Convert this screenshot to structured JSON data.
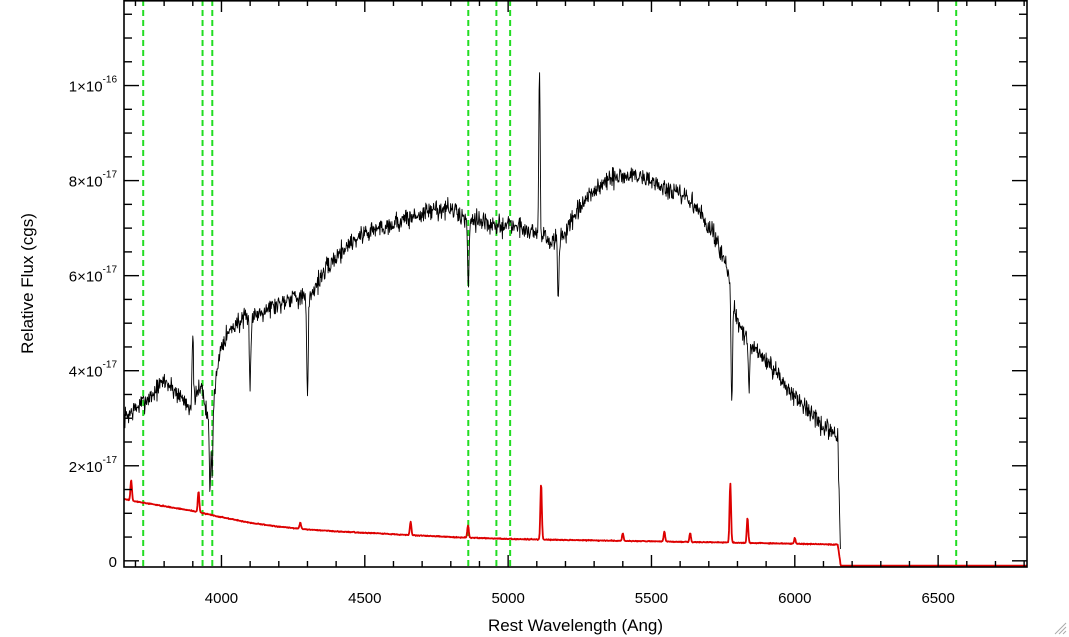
{
  "chart_data": {
    "type": "line",
    "title": "",
    "xlabel": "Rest Wavelength (Ang)",
    "ylabel": "Relative Flux (cgs)",
    "xlim": [
      3660,
      6810
    ],
    "ylim": [
      -1.3e-18,
      1.18e-16
    ],
    "grid": false,
    "legend": "none",
    "x_ticks": [
      {
        "value": 4000,
        "label": "4000"
      },
      {
        "value": 4500,
        "label": "4500"
      },
      {
        "value": 5000,
        "label": "5000"
      },
      {
        "value": 5500,
        "label": "5500"
      },
      {
        "value": 6000,
        "label": "6000"
      },
      {
        "value": 6500,
        "label": "6500"
      }
    ],
    "y_ticks": [
      {
        "value": 0,
        "mantissa": "0",
        "exponent": ""
      },
      {
        "value": 2e-17,
        "mantissa": "2×10",
        "exponent": "-17"
      },
      {
        "value": 4e-17,
        "mantissa": "4×10",
        "exponent": "-17"
      },
      {
        "value": 6e-17,
        "mantissa": "6×10",
        "exponent": "-17"
      },
      {
        "value": 8e-17,
        "mantissa": "8×10",
        "exponent": "-17"
      },
      {
        "value": 1e-16,
        "mantissa": "1×10",
        "exponent": "-16"
      }
    ],
    "reference_lines_x": [
      3727,
      3934,
      3968,
      4861,
      4959,
      5007,
      6563
    ],
    "series": [
      {
        "color": "#000000",
        "seed": 7,
        "noise": 3.2e-18,
        "x": [
          3660,
          3700,
          3760,
          3800,
          3850,
          3900,
          3930,
          3950,
          3975,
          4000,
          4050,
          4100,
          4150,
          4200,
          4250,
          4300,
          4350,
          4400,
          4450,
          4500,
          4550,
          4600,
          4650,
          4700,
          4750,
          4800,
          4850,
          4900,
          4950,
          5000,
          5050,
          5100,
          5150,
          5200,
          5250,
          5300,
          5350,
          5400,
          5450,
          5500,
          5550,
          5600,
          5650,
          5700,
          5750,
          5800,
          5850,
          5900,
          5950,
          6000,
          6050,
          6100,
          6150,
          6160
        ],
        "y": [
          3e-17,
          3.2e-17,
          3.5e-17,
          3.8e-17,
          3.5e-17,
          3.2e-17,
          3.8e-17,
          3e-17,
          3.6e-17,
          4.6e-17,
          5e-17,
          5.1e-17,
          5.3e-17,
          5.4e-17,
          5.6e-17,
          5.5e-17,
          6e-17,
          6.4e-17,
          6.7e-17,
          6.9e-17,
          7e-17,
          7.1e-17,
          7.2e-17,
          7.3e-17,
          7.4e-17,
          7.4e-17,
          7.2e-17,
          7.2e-17,
          7e-17,
          7.1e-17,
          7e-17,
          6.9e-17,
          6.7e-17,
          6.9e-17,
          7.4e-17,
          7.8e-17,
          8e-17,
          8.1e-17,
          8.1e-17,
          8e-17,
          7.8e-17,
          7.7e-17,
          7.5e-17,
          7e-17,
          6.5e-17,
          5e-17,
          4.5e-17,
          4.2e-17,
          3.8e-17,
          3.5e-17,
          3.1e-17,
          2.8e-17,
          2.6e-17,
          0
        ],
        "features": [
          {
            "x": 3900,
            "y": 4.6e-17
          },
          {
            "x": 3934,
            "y": 3.5e-17
          },
          {
            "x": 3960,
            "y": 1.5e-17
          },
          {
            "x": 3968,
            "y": 1.8e-17
          },
          {
            "x": 4100,
            "y": 3.8e-17
          },
          {
            "x": 4300,
            "y": 3.4e-17
          },
          {
            "x": 4861,
            "y": 5.8e-17
          },
          {
            "x": 5110,
            "y": 1.13e-16
          },
          {
            "x": 5112,
            "y": 5.6e-17
          },
          {
            "x": 5175,
            "y": 5.5e-17
          },
          {
            "x": 5780,
            "y": 3.3e-17
          },
          {
            "x": 5840,
            "y": 3.5e-17
          }
        ]
      },
      {
        "color": "#dd0000",
        "seed": 3,
        "noise": 1.5e-19,
        "x": [
          3660,
          3700,
          3800,
          3900,
          4000,
          4100,
          4200,
          4300,
          4400,
          4500,
          4600,
          4700,
          4800,
          4900,
          5000,
          5100,
          5200,
          5300,
          5400,
          5500,
          5600,
          5700,
          5800,
          5900,
          6000,
          6100,
          6150,
          6160,
          6810
        ],
        "y": [
          1.3e-17,
          1.25e-17,
          1.15e-17,
          1.05e-17,
          9.2e-18,
          8e-18,
          7.2e-18,
          6.6e-18,
          6.2e-18,
          5.9e-18,
          5.6e-18,
          5.3e-18,
          5e-18,
          4.8e-18,
          4.6e-18,
          4.5e-18,
          4.4e-18,
          4.3e-18,
          4.2e-18,
          4.1e-18,
          4e-18,
          3.9e-18,
          3.8e-18,
          3.7e-18,
          3.6e-18,
          3.5e-18,
          3.4e-18,
          -1e-18,
          -1e-18
        ],
        "features": [
          {
            "x": 3685,
            "y": 1.7e-17
          },
          {
            "x": 3920,
            "y": 1.45e-17
          },
          {
            "x": 4275,
            "y": 8e-18
          },
          {
            "x": 4660,
            "y": 8.2e-18
          },
          {
            "x": 4860,
            "y": 7.5e-18
          },
          {
            "x": 5115,
            "y": 1.62e-17
          },
          {
            "x": 5400,
            "y": 5.8e-18
          },
          {
            "x": 5545,
            "y": 6.2e-18
          },
          {
            "x": 5635,
            "y": 5.8e-18
          },
          {
            "x": 5775,
            "y": 1.62e-17
          },
          {
            "x": 5835,
            "y": 9e-18
          },
          {
            "x": 6000,
            "y": 4.8e-18
          }
        ]
      }
    ]
  }
}
